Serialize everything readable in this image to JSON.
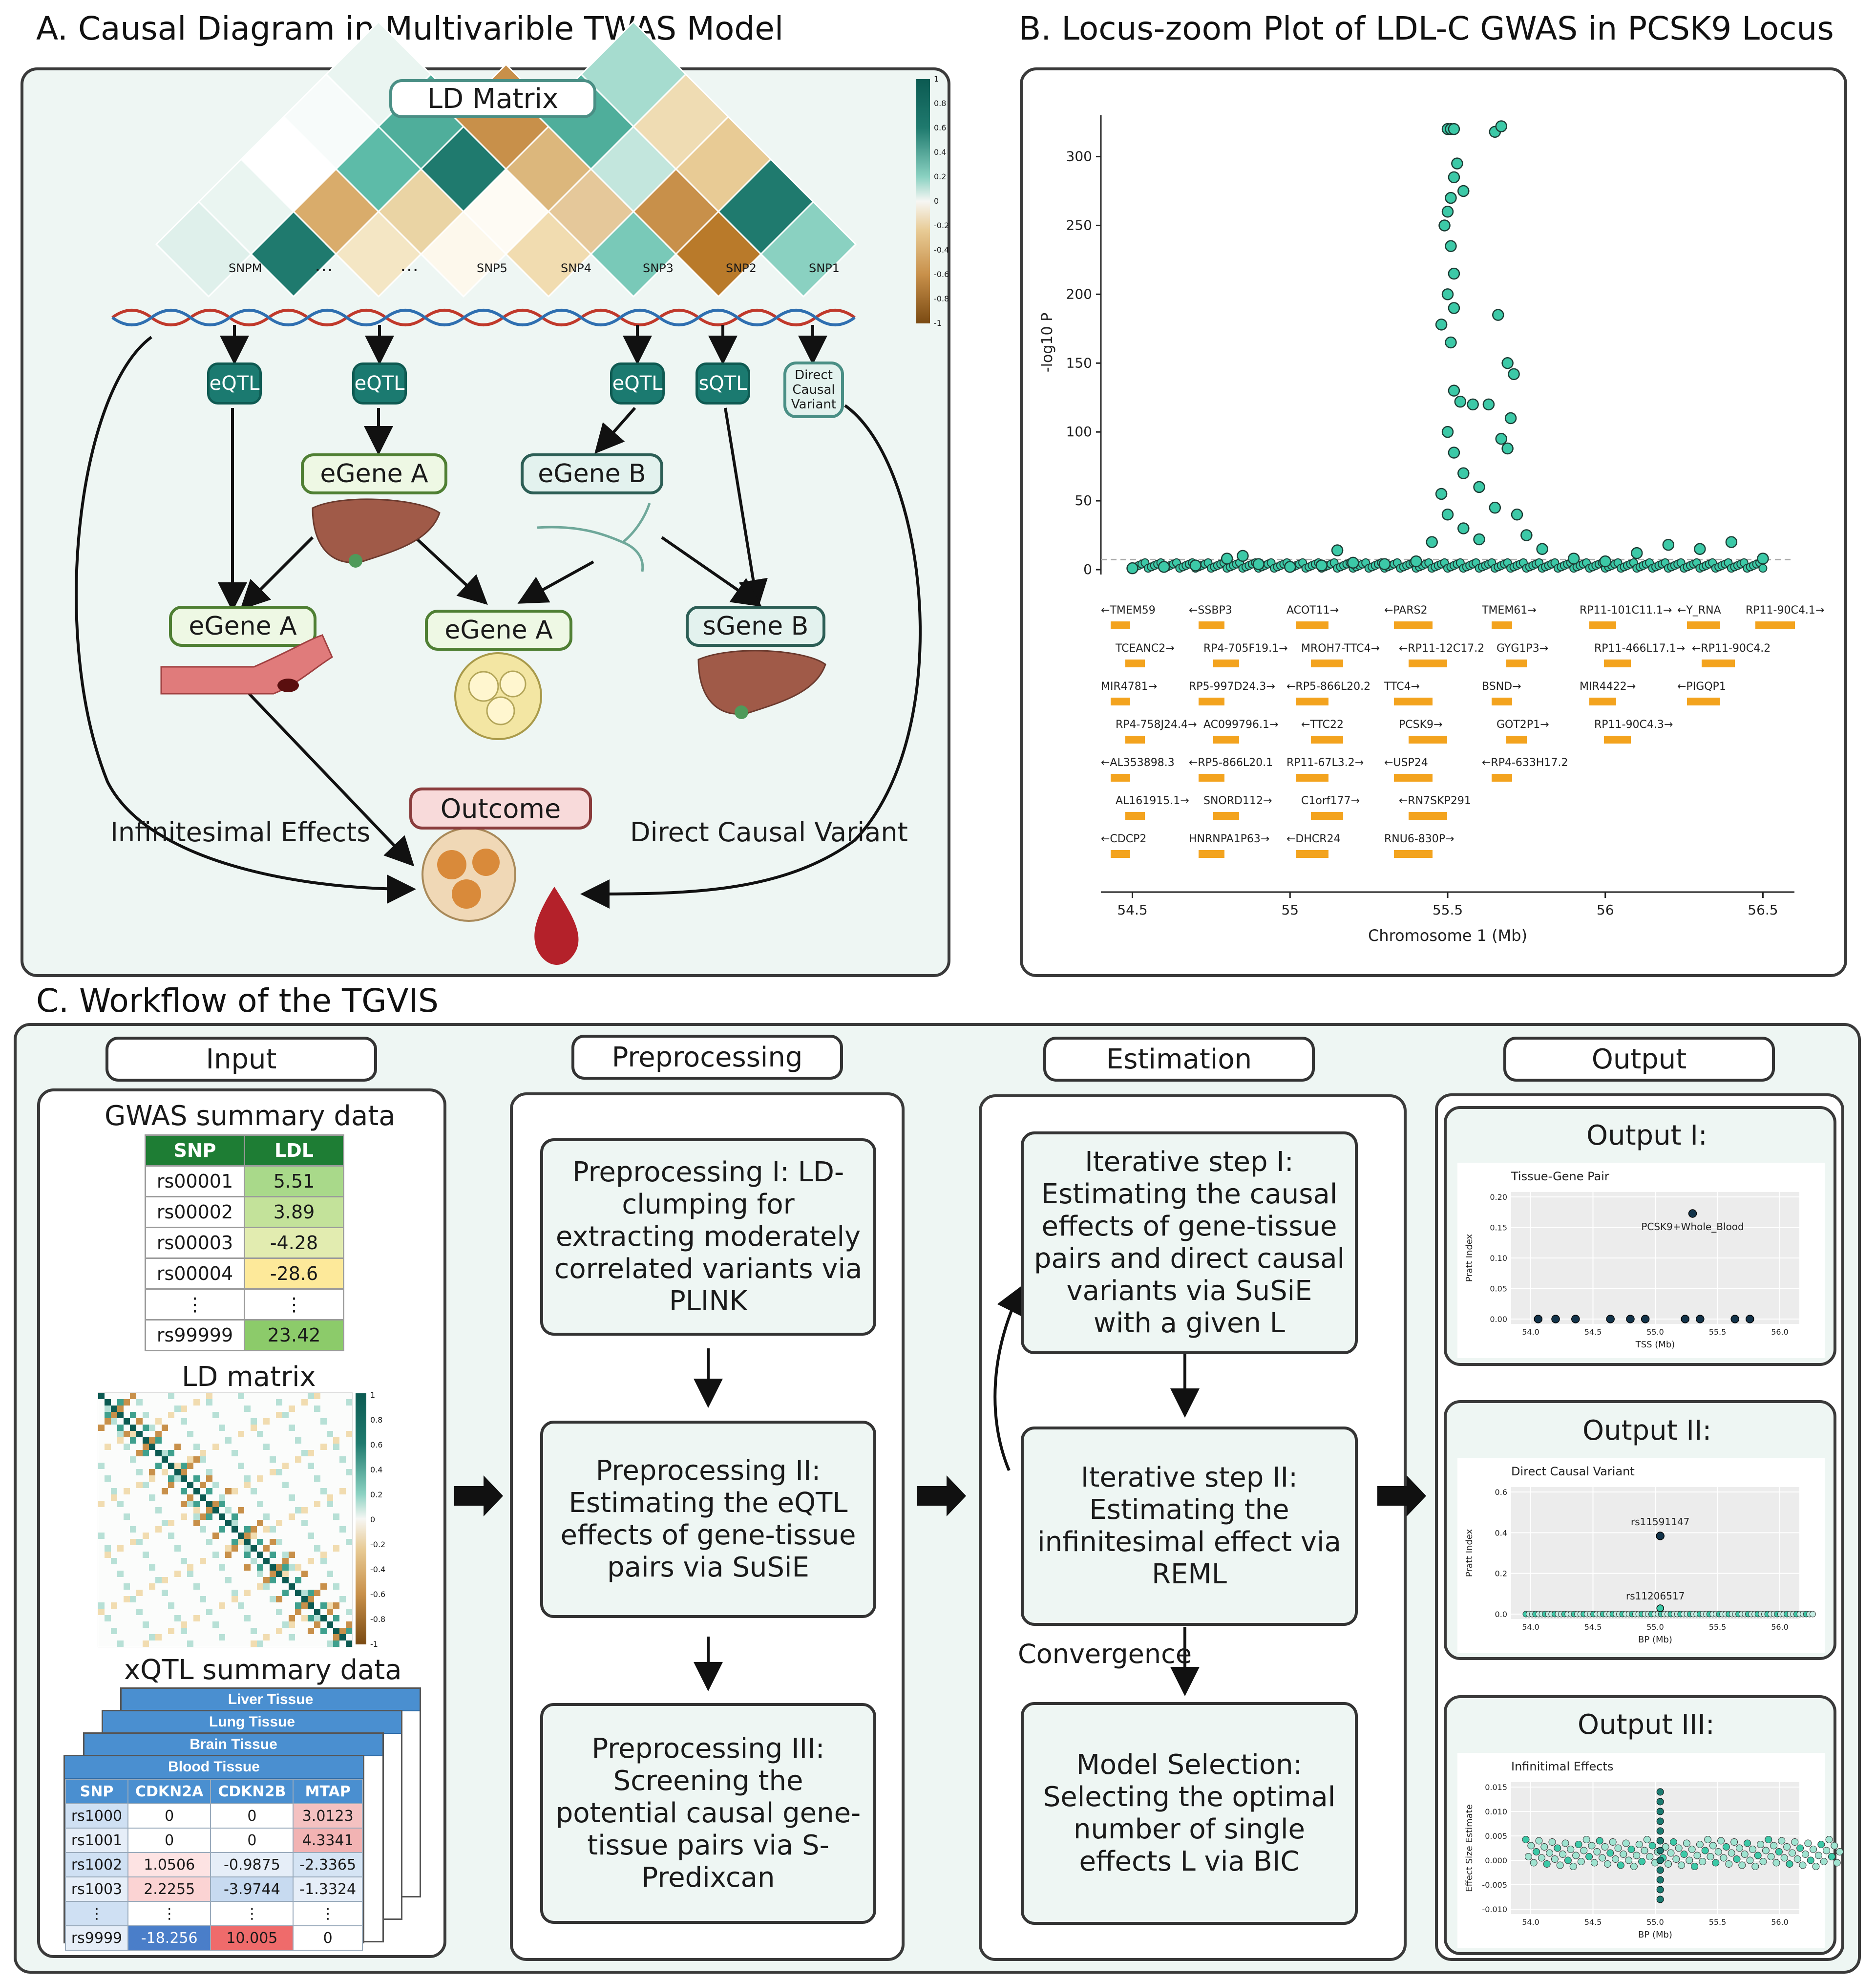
{
  "panelA": {
    "title": "A. Causal Diagram in Multivarible TWAS Model",
    "ld_matrix_label": "LD Matrix",
    "snp_labels": [
      "SNPM",
      "…",
      "…",
      "SNP5",
      "SNP4",
      "SNP3",
      "SNP2",
      "SNP1"
    ],
    "colorbar_ticks": [
      "1",
      "0.8",
      "0.6",
      "0.4",
      "0.2",
      "0",
      "-0.2",
      "-0.4",
      "-0.6",
      "-0.8",
      "-1"
    ],
    "qtl_tags": [
      "eQTL",
      "eQTL",
      "eQTL",
      "sQTL"
    ],
    "direct_causal_tag": "Direct Causal Variant",
    "genes": {
      "egene_a_top": "eGene A",
      "egene_b_top": "eGene B",
      "egene_a_left": "eGene A",
      "egene_a_mid": "eGene A",
      "sgene_b": "sGene B"
    },
    "outcome": "Outcome",
    "infinitesimal_label": "Infinitesimal Effects",
    "direct_label": "Direct Causal Variant",
    "colors": {
      "teal": "#1b7a70",
      "brown": "#b97a2a",
      "green": "#4f7f33"
    }
  },
  "panelB": {
    "title": "B. Locus-zoom Plot of LDL-C GWAS in PCSK9 Locus",
    "genes_track": [
      [
        "←TMEM59",
        "←SSBP3",
        "ACOT11→",
        "←PARS2",
        "TMEM61→",
        "RP11-101C11.1→",
        "←Y_RNA",
        "RP11-90C4.1→"
      ],
      [
        "TCEANC2→",
        "RP4-705F19.1→",
        "MROH7-TTC4→",
        "←RP11-12C17.2",
        "GYG1P3→",
        "RP11-466L17.1→",
        "←RP11-90C4.2"
      ],
      [
        "MIR4781→",
        "RP5-997D24.3→",
        "←RP5-866L20.2",
        "TTC4→",
        "BSND→",
        "MIR4422→",
        "←PIGQP1"
      ],
      [
        "RP4-758J24.4→",
        "AC099796.1→",
        "←TTC22",
        "PCSK9→",
        "GOT2P1→",
        "RP11-90C4.3→"
      ],
      [
        "←AL353898.3",
        "←RP5-866L20.1",
        "RP11-67L3.2→",
        "←USP24",
        "←RP4-633H17.2"
      ],
      [
        "AL161915.1→",
        "SNORD112→",
        "C1orf177→",
        "←RN7SKP291"
      ],
      [
        "←CDCP2",
        "HNRNPA1P63→",
        "←DHCR24",
        "RNU6-830P→"
      ]
    ]
  },
  "chart_data": {
    "type": "scatter",
    "title": "",
    "xlabel": "Chromosome 1 (Mb)",
    "ylabel": "-log10 P",
    "xlim": [
      54.4,
      56.6
    ],
    "ylim": [
      0,
      330
    ],
    "x_ticks": [
      "54.5",
      "55",
      "55.5",
      "56",
      "56.5"
    ],
    "y_ticks": [
      "0",
      "50",
      "100",
      "150",
      "200",
      "250",
      "300"
    ],
    "significance_threshold": 7.3,
    "point_color": "#3cc9a7",
    "points": [
      [
        55.5,
        320
      ],
      [
        55.51,
        320
      ],
      [
        55.52,
        320
      ],
      [
        55.65,
        318
      ],
      [
        55.67,
        322
      ],
      [
        55.53,
        295
      ],
      [
        55.52,
        285
      ],
      [
        55.51,
        270
      ],
      [
        55.55,
        275
      ],
      [
        55.5,
        260
      ],
      [
        55.49,
        250
      ],
      [
        55.51,
        235
      ],
      [
        55.52,
        215
      ],
      [
        55.5,
        200
      ],
      [
        55.52,
        190
      ],
      [
        55.48,
        178
      ],
      [
        55.66,
        185
      ],
      [
        55.51,
        165
      ],
      [
        55.69,
        150
      ],
      [
        55.71,
        142
      ],
      [
        55.52,
        130
      ],
      [
        55.54,
        122
      ],
      [
        55.58,
        120
      ],
      [
        55.63,
        120
      ],
      [
        55.7,
        110
      ],
      [
        55.67,
        95
      ],
      [
        55.69,
        88
      ],
      [
        55.5,
        100
      ],
      [
        55.52,
        85
      ],
      [
        55.55,
        70
      ],
      [
        55.48,
        55
      ],
      [
        55.6,
        60
      ],
      [
        55.65,
        45
      ],
      [
        55.72,
        40
      ],
      [
        55.5,
        40
      ],
      [
        55.55,
        30
      ],
      [
        55.75,
        25
      ],
      [
        55.45,
        20
      ],
      [
        55.8,
        15
      ],
      [
        55.6,
        22
      ],
      [
        54.5,
        1
      ],
      [
        54.6,
        2
      ],
      [
        54.7,
        3
      ],
      [
        54.8,
        8
      ],
      [
        54.85,
        10
      ],
      [
        54.9,
        4
      ],
      [
        55.0,
        2
      ],
      [
        55.1,
        3
      ],
      [
        55.15,
        14
      ],
      [
        55.2,
        5
      ],
      [
        55.3,
        4
      ],
      [
        55.4,
        6
      ],
      [
        55.9,
        8
      ],
      [
        56.0,
        6
      ],
      [
        56.1,
        12
      ],
      [
        56.2,
        18
      ],
      [
        56.3,
        15
      ],
      [
        56.4,
        20
      ],
      [
        56.5,
        8
      ]
    ]
  },
  "panelC": {
    "title": "C. Workflow of the TGVIS",
    "columns": [
      "Input",
      "Preprocessing",
      "Estimation",
      "Output"
    ],
    "input": {
      "gwas_title": "GWAS summary data",
      "gwas_headers": [
        "SNP",
        "LDL"
      ],
      "gwas_rows": [
        [
          "rs00001",
          "5.51"
        ],
        [
          "rs00002",
          "3.89"
        ],
        [
          "rs00003",
          "-4.28"
        ],
        [
          "rs00004",
          "-28.6"
        ],
        [
          "⋮",
          "⋮"
        ],
        [
          "rs99999",
          "23.42"
        ]
      ],
      "ld_title": "LD matrix",
      "ld_ticks": [
        "1",
        "0.8",
        "0.6",
        "0.4",
        "0.2",
        "0",
        "-0.2",
        "-0.4",
        "-0.6",
        "-0.8",
        "-1"
      ],
      "xqtl_title": "xQTL summary data",
      "tissues": [
        "Liver Tissue",
        "Lung Tissue",
        "Brain Tissue",
        "Blood Tissue"
      ],
      "xqtl_headers": [
        "SNP",
        "CDKN2A",
        "CDKN2B",
        "MTAP"
      ],
      "xqtl_rows": [
        [
          "rs1000",
          "0",
          "0",
          "3.0123"
        ],
        [
          "rs1001",
          "0",
          "0",
          "4.3341"
        ],
        [
          "rs1002",
          "1.0506",
          "-0.9875",
          "-2.3365"
        ],
        [
          "rs1003",
          "2.2255",
          "-3.9744",
          "-1.3324"
        ],
        [
          "⋮",
          "⋮",
          "⋮",
          "⋮"
        ],
        [
          "rs9999",
          "-18.256",
          "10.005",
          "0"
        ]
      ]
    },
    "preprocessing": [
      "Preprocessing I: LD-clumping for extracting moderately correlated variants via PLINK",
      "Preprocessing II: Estimating the eQTL effects of gene-tissue pairs via SuSiE",
      "Preprocessing III: Screening the potential causal gene-tissue pairs via S-Predixcan"
    ],
    "estimation": [
      "Iterative step I: Estimating the causal effects of gene-tissue pairs and direct causal variants via SuSiE with a given L",
      "Iterative step II: Estimating the infinitesimal effect via REML",
      "Model Selection: Selecting the optimal number of single effects L via BIC"
    ],
    "convergence": "Convergence",
    "outputs": [
      {
        "title": "Output I:",
        "plot_title": "Tissue-Gene Pair",
        "xlabel": "TSS (Mb)",
        "ylabel": "Pratt Index",
        "annotation": "PCSK9+Whole_Blood",
        "x_ticks": [
          "54.0",
          "54.5",
          "55.0",
          "55.5",
          "56.0"
        ],
        "y_ticks": [
          "0.20",
          "0.15",
          "0.10",
          "0.05",
          "0.00"
        ]
      },
      {
        "title": "Output II:",
        "plot_title": "Direct Causal Variant",
        "xlabel": "BP (Mb)",
        "ylabel": "Pratt Index",
        "annotation": "rs11591147",
        "annotation2": "rs11206517",
        "x_ticks": [
          "54.0",
          "54.5",
          "55.0",
          "55.5",
          "56.0"
        ],
        "y_ticks": [
          "0.6",
          "0.4",
          "0.2",
          "0.0"
        ]
      },
      {
        "title": "Output III:",
        "plot_title": "Infinitimal Effects",
        "xlabel": "BP (Mb)",
        "ylabel": "Effect Size Estimate",
        "x_ticks": [
          "54.0",
          "54.5",
          "55.0",
          "55.5",
          "56.0"
        ],
        "y_ticks": [
          "0.015",
          "0.010",
          "0.005",
          "0.000",
          "-0.005",
          "-0.010"
        ]
      }
    ]
  }
}
